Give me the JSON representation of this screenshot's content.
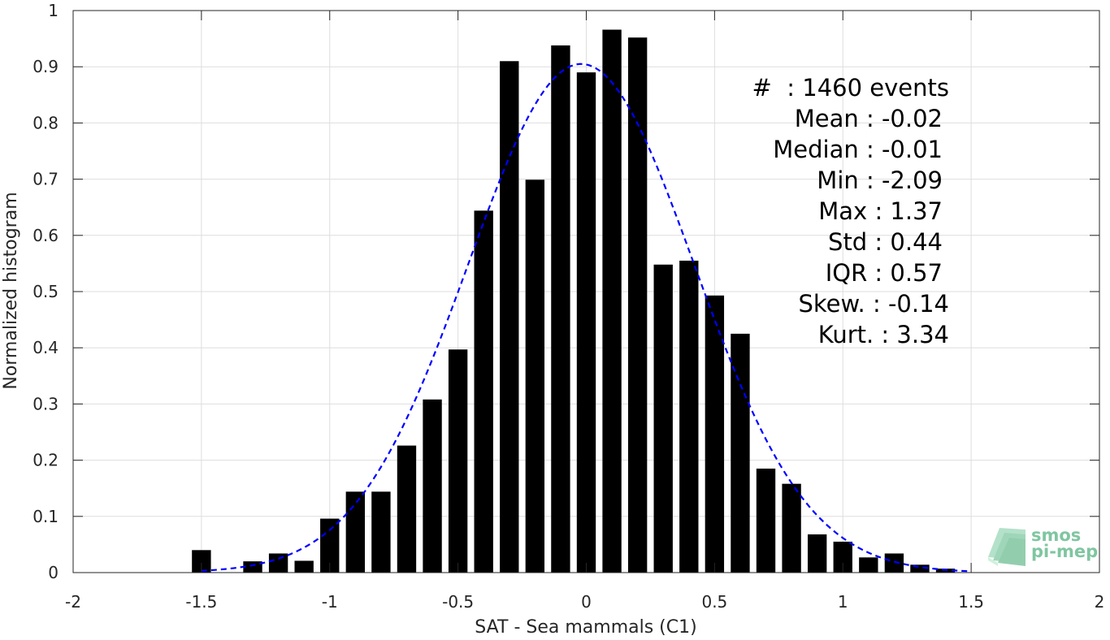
{
  "chart_data": {
    "type": "bar",
    "xlabel": "SAT - Sea mammals (C1)",
    "ylabel": "Normalized histogram",
    "xlim": [
      -2,
      2
    ],
    "ylim": [
      0,
      1
    ],
    "grid": true,
    "x_ticks": [
      -2,
      -1.5,
      -1,
      -0.5,
      0,
      0.5,
      1,
      1.5,
      2
    ],
    "x_tick_labels": [
      "-2",
      "-1.5",
      "-1",
      "-0.5",
      "0",
      "0.5",
      "1",
      "1.5",
      "2"
    ],
    "y_ticks": [
      0,
      0.1,
      0.2,
      0.3,
      0.4,
      0.5,
      0.6,
      0.7,
      0.8,
      0.9,
      1
    ],
    "y_tick_labels": [
      "0",
      "0.1",
      "0.2",
      "0.3",
      "0.4",
      "0.5",
      "0.6",
      "0.7",
      "0.8",
      "0.9",
      "1"
    ],
    "bar_color": "#000000",
    "fit_color": "#0000ff",
    "bars": [
      {
        "x": -1.5,
        "value": 0.04
      },
      {
        "x": -1.3,
        "value": 0.02
      },
      {
        "x": -1.2,
        "value": 0.034
      },
      {
        "x": -1.1,
        "value": 0.021
      },
      {
        "x": -1.0,
        "value": 0.096
      },
      {
        "x": -0.9,
        "value": 0.144
      },
      {
        "x": -0.8,
        "value": 0.144
      },
      {
        "x": -0.7,
        "value": 0.226
      },
      {
        "x": -0.6,
        "value": 0.308
      },
      {
        "x": -0.5,
        "value": 0.397
      },
      {
        "x": -0.4,
        "value": 0.644
      },
      {
        "x": -0.3,
        "value": 0.91
      },
      {
        "x": -0.2,
        "value": 0.699
      },
      {
        "x": -0.1,
        "value": 0.938
      },
      {
        "x": 0.0,
        "value": 0.89
      },
      {
        "x": 0.1,
        "value": 0.966
      },
      {
        "x": 0.2,
        "value": 0.952
      },
      {
        "x": 0.3,
        "value": 0.548
      },
      {
        "x": 0.4,
        "value": 0.555
      },
      {
        "x": 0.5,
        "value": 0.493
      },
      {
        "x": 0.6,
        "value": 0.425
      },
      {
        "x": 0.7,
        "value": 0.185
      },
      {
        "x": 0.8,
        "value": 0.158
      },
      {
        "x": 0.9,
        "value": 0.068
      },
      {
        "x": 1.0,
        "value": 0.055
      },
      {
        "x": 1.1,
        "value": 0.027
      },
      {
        "x": 1.2,
        "value": 0.034
      },
      {
        "x": 1.3,
        "value": 0.014
      },
      {
        "x": 1.4,
        "value": 0.007
      }
    ],
    "fit": {
      "style": "dashed",
      "mean": -0.02,
      "std": 0.44,
      "peak": 0.905,
      "x_range": [
        -1.5,
        1.5
      ]
    },
    "stats": [
      {
        "label": "#  : 1460 events"
      },
      {
        "label": "Mean : -0.02"
      },
      {
        "label": "Median : -0.01"
      },
      {
        "label": "Min : -2.09"
      },
      {
        "label": "Max : 1.37"
      },
      {
        "label": "Std : 0.44"
      },
      {
        "label": "IQR : 0.57"
      },
      {
        "label": "Skew. : -0.14"
      },
      {
        "label": "Kurt. : 3.34"
      }
    ]
  },
  "logo": {
    "line1": "smos",
    "line2": "pi-mep",
    "color": "#7fc6a0"
  }
}
